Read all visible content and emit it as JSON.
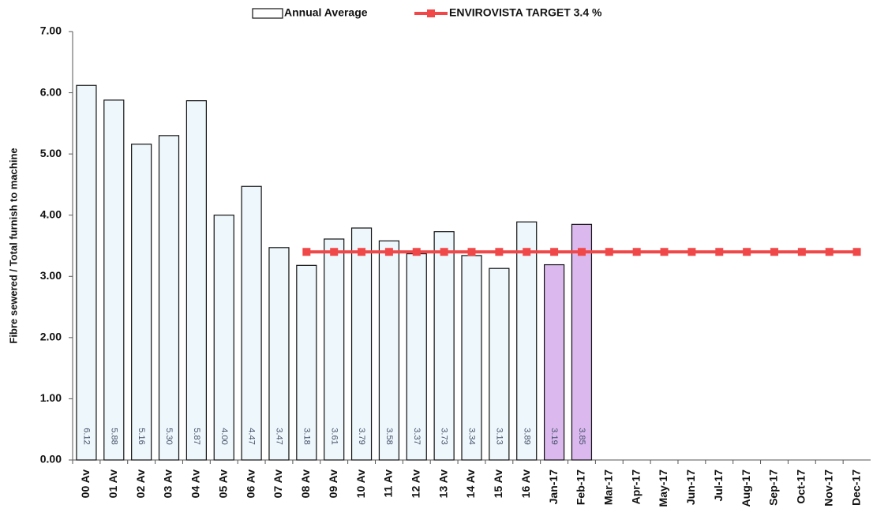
{
  "chart_data": {
    "type": "bar",
    "ylabel": "Fibre sewered / Total furnish to machine",
    "categories": [
      "00 Av",
      "01 Av",
      "02 Av",
      "03 Av",
      "04 Av",
      "05 Av",
      "06 Av",
      "07 Av",
      "08 Av",
      "09 Av",
      "10 Av",
      "11 Av",
      "12 Av",
      "13 Av",
      "14 Av",
      "15 Av",
      "16 Av",
      "Jan-17",
      "Feb-17",
      "Mar-17",
      "Apr-17",
      "May-17",
      "Jun-17",
      "Jul-17",
      "Aug-17",
      "Sep-17",
      "Oct-17",
      "Nov-17",
      "Dec-17"
    ],
    "ylim": [
      0,
      7
    ],
    "yticks": [
      {
        "value": 0,
        "label": "0.00"
      },
      {
        "value": 1,
        "label": "1.00"
      },
      {
        "value": 2,
        "label": "2.00"
      },
      {
        "value": 3,
        "label": "3.00"
      },
      {
        "value": 4,
        "label": "4.00"
      },
      {
        "value": 5,
        "label": "5.00"
      },
      {
        "value": 6,
        "label": "6.00"
      },
      {
        "value": 7,
        "label": "7.00"
      }
    ],
    "series": [
      {
        "name": "Annual Average",
        "type": "bar",
        "color": "#ffffff",
        "colors": [
          "#eef7fb",
          "#eef7fb",
          "#eef7fb",
          "#eef7fb",
          "#eef7fb",
          "#eef7fb",
          "#eef7fb",
          "#eef7fb",
          "#eef7fb",
          "#eef7fb",
          "#eef7fb",
          "#eef7fb",
          "#eef7fb",
          "#eef7fb",
          "#eef7fb",
          "#eef7fb",
          "#eef7fb",
          "#dbb9ee",
          "#dbb9ee",
          null,
          null,
          null,
          null,
          null,
          null,
          null,
          null,
          null,
          null
        ],
        "values": [
          6.12,
          5.88,
          5.16,
          5.3,
          5.87,
          4,
          4.47,
          3.47,
          3.18,
          3.61,
          3.79,
          3.58,
          3.37,
          3.73,
          3.34,
          3.13,
          3.89,
          3.19,
          3.85,
          null,
          null,
          null,
          null,
          null,
          null,
          null,
          null,
          null,
          null
        ],
        "value_labels": [
          "6.12",
          "5.88",
          "5.16",
          "5.30",
          "5.87",
          "4.00",
          "4.47",
          "3.47",
          "3.18",
          "3.61",
          "3.79",
          "3.58",
          "3.37",
          "3.73",
          "3.34",
          "3.13",
          "3.89",
          "3.19",
          "3.85",
          null,
          null,
          null,
          null,
          null,
          null,
          null,
          null,
          null,
          null
        ]
      },
      {
        "name": "ENVIROVISTA TARGET 3.4 %",
        "type": "line",
        "color": "#f04848",
        "values": [
          null,
          null,
          null,
          null,
          null,
          null,
          null,
          null,
          3.4,
          3.4,
          3.4,
          3.4,
          3.4,
          3.4,
          3.4,
          3.4,
          3.4,
          3.4,
          3.4,
          3.4,
          3.4,
          3.4,
          3.4,
          3.4,
          3.4,
          3.4,
          3.4,
          3.4,
          3.4
        ]
      }
    ]
  }
}
